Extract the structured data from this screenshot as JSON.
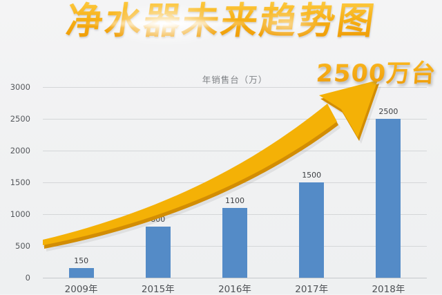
{
  "page": {
    "title": "净水器未来趋势图",
    "annotation": "2500万台"
  },
  "colors": {
    "title_gold_top": "#fdc93e",
    "title_gold_bottom": "#ee9a05",
    "annotation_gold": "#f5ab12",
    "bar_blue": "#548bc7",
    "arrow_gold": "#f4b106",
    "arrow_shadow": "#d28d04",
    "background": "#f0f1f2",
    "gridline": "#d4d6d8",
    "axis_text": "#55585c"
  },
  "chart_data": {
    "type": "bar",
    "title": "年销售台（万）",
    "categories": [
      "2009年",
      "2015年",
      "2016年",
      "2017年",
      "2018年"
    ],
    "values": [
      150,
      800,
      1100,
      1500,
      2500
    ],
    "bar_labels": [
      "150",
      "800",
      "1100",
      "1500",
      "2500"
    ],
    "xlabel": "",
    "ylabel": "",
    "ylim": [
      0,
      3000
    ],
    "yticks": [
      0,
      500,
      1000,
      1500,
      2000,
      2500,
      3000
    ],
    "grid": true,
    "legend_position": "none",
    "annotation": "2500万台"
  }
}
